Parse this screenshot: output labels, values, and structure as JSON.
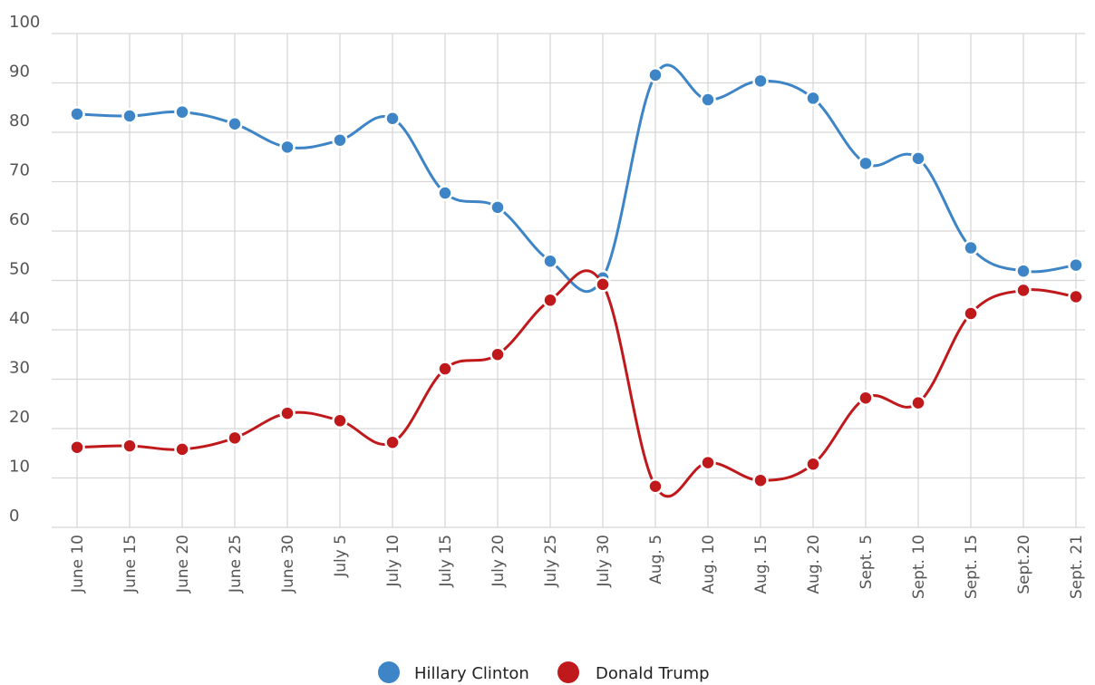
{
  "chart_data": {
    "type": "line",
    "categories": [
      "June 10",
      "June 15",
      "June 20",
      "June 25",
      "June 30",
      "July 5",
      "July 10",
      "July 15",
      "July 20",
      "July 25",
      "July 30",
      "Aug. 5",
      "Aug. 10",
      "Aug. 15",
      "Aug. 20",
      "Sept. 5",
      "Sept. 10",
      "Sept. 15",
      "Sept.20",
      "Sept. 21"
    ],
    "series": [
      {
        "name": "Hillary Clinton",
        "color": "#3d85c6",
        "values": [
          83.7,
          83.3,
          84.1,
          81.7,
          77.0,
          78.4,
          82.8,
          67.7,
          64.8,
          53.9,
          50.5,
          91.6,
          86.6,
          90.4,
          86.9,
          73.7,
          74.7,
          56.6,
          51.9,
          53.1
        ]
      },
      {
        "name": "Donald Trump",
        "color": "#c0191c",
        "values": [
          16.2,
          16.5,
          15.8,
          18.1,
          23.1,
          21.6,
          17.2,
          32.1,
          35.0,
          46.0,
          49.2,
          8.3,
          13.1,
          9.5,
          12.8,
          26.2,
          25.2,
          43.3,
          48.0,
          46.7
        ]
      }
    ],
    "yticks": [
      0,
      10,
      20,
      30,
      40,
      50,
      60,
      70,
      80,
      90,
      100
    ],
    "ylim": [
      0,
      100
    ],
    "title": "",
    "xlabel": "",
    "ylabel": "",
    "grid": true,
    "legend_position": "bottom-center"
  }
}
